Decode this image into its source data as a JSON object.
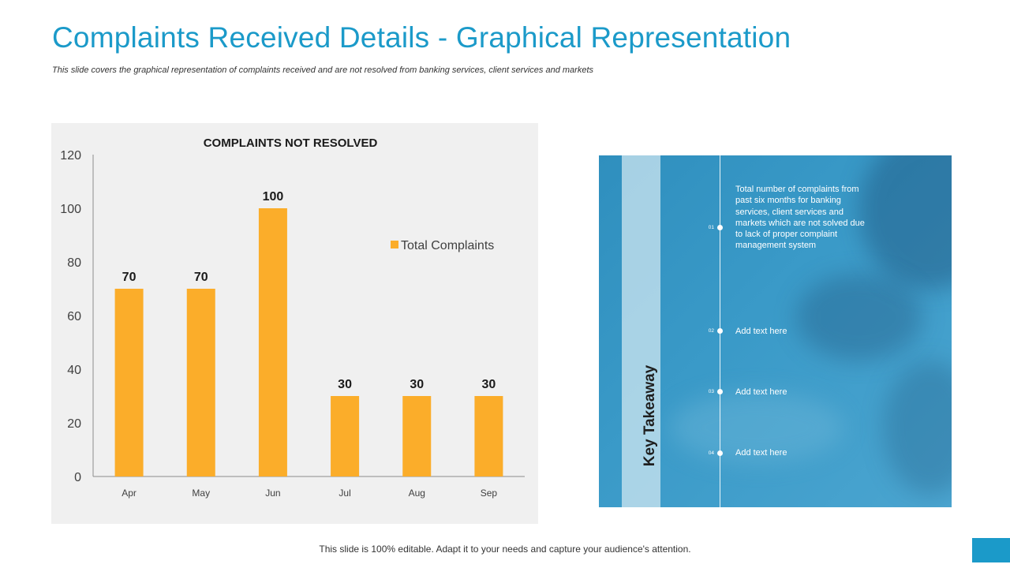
{
  "header": {
    "title": "Complaints Received Details - Graphical Representation",
    "subtitle": "This slide covers the graphical representation of complaints received and are not resolved from banking services, client services and markets"
  },
  "chart_data": {
    "type": "bar",
    "title": "COMPLAINTS NOT RESOLVED",
    "categories": [
      "Apr",
      "May",
      "Jun",
      "Jul",
      "Aug",
      "Sep"
    ],
    "series": [
      {
        "name": "Total Complaints",
        "values": [
          70,
          70,
          100,
          30,
          30,
          30
        ]
      }
    ],
    "ylim": [
      0,
      120
    ],
    "yticks": [
      0,
      20,
      40,
      60,
      80,
      100,
      120
    ],
    "grid": false,
    "data_labels": true,
    "legend_position": "top-right",
    "bar_color": "#fbad2a"
  },
  "takeaway": {
    "label": "Key Takeaway",
    "items": [
      {
        "num": "01",
        "text": "Total number of complaints from past six months for banking services, client services and markets which are not solved due to lack of proper complaint management system"
      },
      {
        "num": "02",
        "text": "Add text here"
      },
      {
        "num": "03",
        "text": "Add text here"
      },
      {
        "num": "04",
        "text": "Add text here"
      }
    ]
  },
  "footer": {
    "note": "This slide is 100% editable. Adapt it to your needs and capture your audience's attention."
  },
  "colors": {
    "accent": "#1b9ac9",
    "bar": "#fbad2a",
    "panel_background": "#f0f0f0"
  }
}
